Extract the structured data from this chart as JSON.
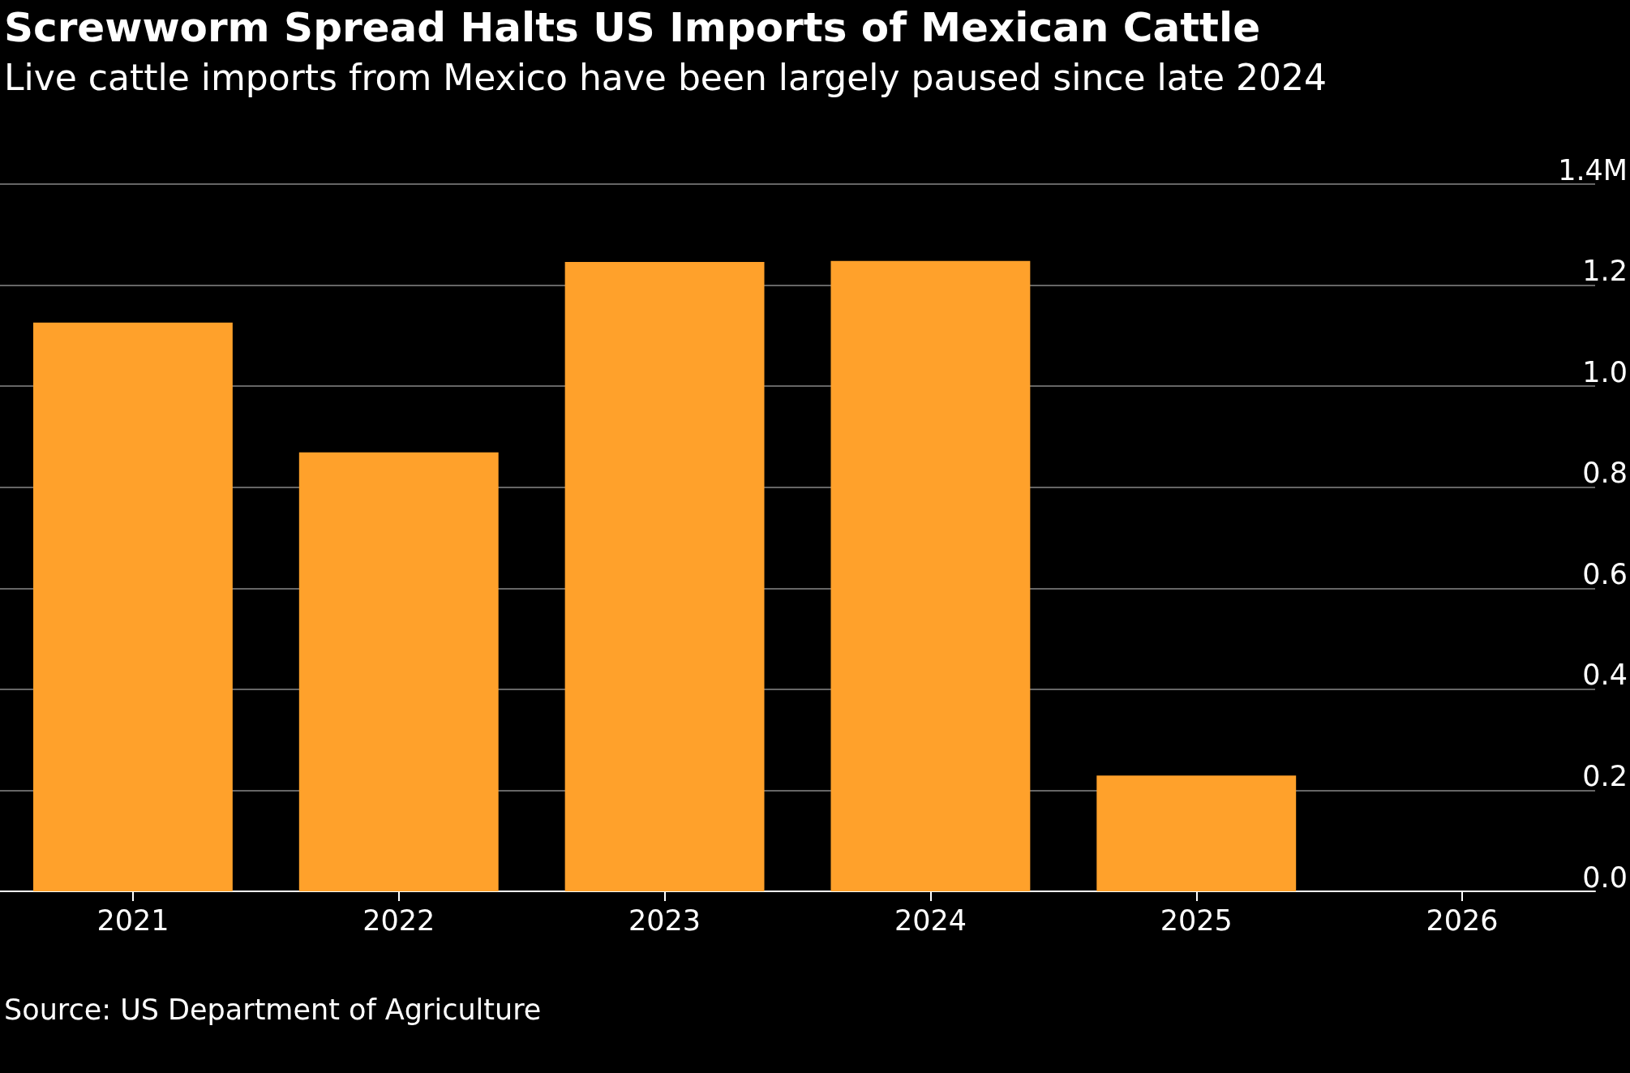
{
  "chart_data": {
    "type": "bar",
    "title": "Screwworm Spread Halts US Imports of Mexican Cattle",
    "subtitle": "Live cattle imports from Mexico have been largely paused since late 2024",
    "categories": [
      "2021",
      "2022",
      "2023",
      "2024",
      "2025",
      "2026"
    ],
    "values": [
      1.126,
      0.869,
      1.246,
      1.248,
      0.229,
      null
    ],
    "color": "#ffa12b",
    "ylim": [
      0,
      1.4
    ],
    "yticks": [
      {
        "value": 0,
        "label": "0.0"
      },
      {
        "value": 0.2,
        "label": "0.2"
      },
      {
        "value": 0.4,
        "label": "0.4"
      },
      {
        "value": 0.6,
        "label": "0.6"
      },
      {
        "value": 0.8,
        "label": "0.8"
      },
      {
        "value": 1.0,
        "label": "1.0"
      },
      {
        "value": 1.2,
        "label": "1.2"
      },
      {
        "value": 1.4,
        "label": "1.4M"
      }
    ],
    "grid": "y",
    "annotations": [
      "Source: US Department of Agriculture"
    ]
  }
}
